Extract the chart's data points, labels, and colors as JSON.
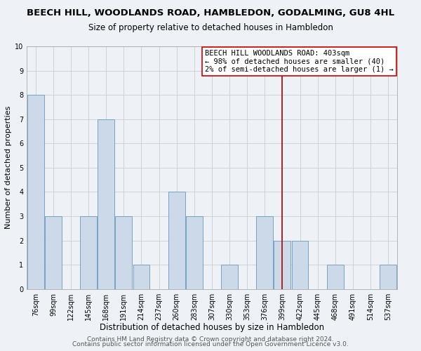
{
  "title": "BEECH HILL, WOODLANDS ROAD, HAMBLEDON, GODALMING, GU8 4HL",
  "subtitle": "Size of property relative to detached houses in Hambledon",
  "xlabel": "Distribution of detached houses by size in Hambledon",
  "ylabel": "Number of detached properties",
  "bin_labels": [
    "76sqm",
    "99sqm",
    "122sqm",
    "145sqm",
    "168sqm",
    "191sqm",
    "214sqm",
    "237sqm",
    "260sqm",
    "283sqm",
    "307sqm",
    "330sqm",
    "353sqm",
    "376sqm",
    "399sqm",
    "422sqm",
    "445sqm",
    "468sqm",
    "491sqm",
    "514sqm",
    "537sqm"
  ],
  "bar_heights": [
    8,
    3,
    0,
    3,
    7,
    3,
    1,
    0,
    4,
    3,
    0,
    1,
    0,
    3,
    2,
    2,
    0,
    1,
    0,
    0,
    1
  ],
  "bar_color": "#ccd9e8",
  "bar_edge_color": "#6699bb",
  "grid_color": "#cccccc",
  "vline_x_idx": 14,
  "vline_color": "#aa0000",
  "annotation_line1": "BEECH HILL WOODLANDS ROAD: 403sqm",
  "annotation_line2": "← 98% of detached houses are smaller (40)",
  "annotation_line3": "2% of semi-detached houses are larger (1) →",
  "ylim": [
    0,
    10
  ],
  "yticks": [
    0,
    1,
    2,
    3,
    4,
    5,
    6,
    7,
    8,
    9,
    10
  ],
  "footer_line1": "Contains HM Land Registry data © Crown copyright and database right 2024.",
  "footer_line2": "Contains public sector information licensed under the Open Government Licence v3.0.",
  "background_color": "#eef2f7",
  "title_fontsize": 9.5,
  "subtitle_fontsize": 8.5,
  "xlabel_fontsize": 8.5,
  "ylabel_fontsize": 8,
  "tick_fontsize": 7,
  "annotation_fontsize": 7.5,
  "footer_fontsize": 6.5
}
